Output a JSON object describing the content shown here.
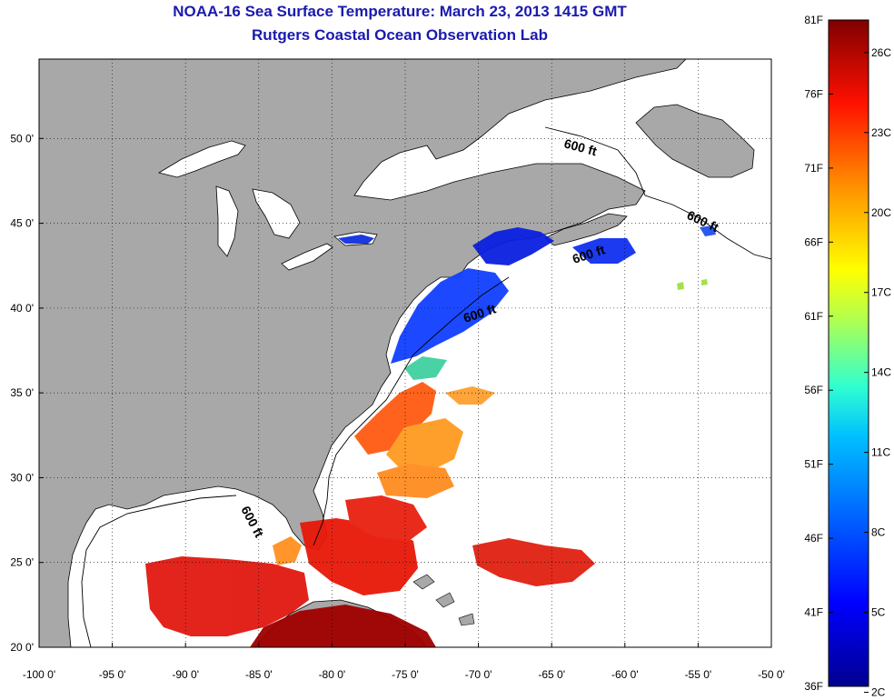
{
  "title": "NOAA-16 Sea Surface Temperature:  March 23, 2013 1415 GMT",
  "subtitle": "Rutgers Coastal Ocean Observation Lab",
  "lat_ticks": [
    "50 0'",
    "45 0'",
    "40 0'",
    "35 0'",
    "30 0'",
    "25 0'",
    "20 0'"
  ],
  "lat_values": [
    50,
    45,
    40,
    35,
    30,
    25,
    20
  ],
  "lon_ticks": [
    "-100 0'",
    "-95 0'",
    "-90 0'",
    "-85 0'",
    "-80 0'",
    "-75 0'",
    "-70 0'",
    "-65 0'",
    "-60 0'",
    "-55 0'",
    "-50 0'"
  ],
  "lon_values": [
    -100,
    -95,
    -90,
    -85,
    -80,
    -75,
    -70,
    -65,
    -60,
    -55,
    -50
  ],
  "isobath_label": "600 ft",
  "colorbar": {
    "fahrenheit": [
      "81F",
      "76F",
      "71F",
      "66F",
      "61F",
      "56F",
      "51F",
      "46F",
      "41F",
      "36F"
    ],
    "celsius": [
      "26C",
      "23C",
      "20C",
      "17C",
      "14C",
      "11C",
      "8C",
      "5C",
      "2C"
    ]
  },
  "colors": {
    "land": "#a8a8a8",
    "water": "#ffffff",
    "title": "#1a1ab0",
    "colormap": [
      "#00008f",
      "#0000ff",
      "#0080ff",
      "#00ffff",
      "#80ff80",
      "#ffff00",
      "#ff8000",
      "#ff0000",
      "#800000"
    ]
  }
}
